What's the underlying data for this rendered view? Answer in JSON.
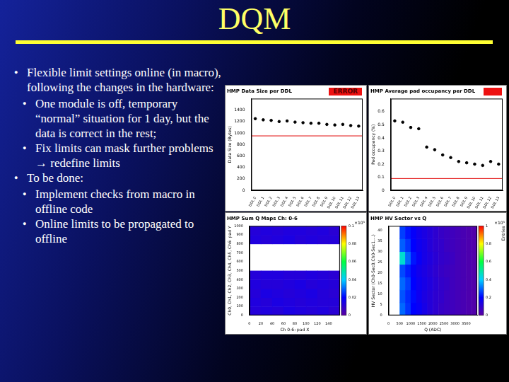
{
  "slide": {
    "title": "DQM",
    "bullets": [
      {
        "text": "Flexible limit settings online (in macro), following the changes in the hardware:",
        "sub": [
          "One module is off, temporary “normal” situation for 1 day, but the data is correct in the rest;",
          "Fix limits can mask further problems → redefine limits"
        ]
      },
      {
        "text": "To be done:",
        "sub": [
          "Implement checks from macro in offline code",
          "Online limits to be propagated to offline"
        ]
      }
    ]
  },
  "chart_data": [
    {
      "type": "line",
      "title": "HMP Data Size per DDL",
      "annotations": [
        "ERROR"
      ],
      "y_label": "Data Size (Bytes)",
      "categories": [
        "DDL 0",
        "DDL 1",
        "DDL 2",
        "DDL 3",
        "DDL 4",
        "DDL 5",
        "DDL 6",
        "DDL 7",
        "DDL 8",
        "DDL 9",
        "DDL 10",
        "DDL 11",
        "DDL 12",
        "DDL 13"
      ],
      "values": [
        1250,
        1230,
        1220,
        1200,
        1210,
        1190,
        1180,
        1170,
        1170,
        1150,
        1140,
        1150,
        1130,
        1120
      ],
      "threshold": 950,
      "ylim": [
        0,
        1600
      ],
      "yticks": [
        0,
        200,
        400,
        600,
        800,
        1000,
        1200,
        1400
      ],
      "color": "#000000",
      "marker": "circle",
      "line_style": "none"
    },
    {
      "type": "line",
      "title": "HMP Average pad occupancy per DDL",
      "y_label": "Pad occupancy (%)",
      "categories": [
        "DDL 0",
        "DDL 1",
        "DDL 2",
        "DDL 3",
        "DDL 4",
        "DDL 5",
        "DDL 6",
        "DDL 7",
        "DDL 8",
        "DDL 9",
        "DDL 10",
        "DDL 11",
        "DDL 12",
        "DDL 13"
      ],
      "values": [
        0.53,
        0.52,
        0.48,
        0.47,
        0.33,
        0.31,
        0.27,
        0.25,
        0.22,
        0.21,
        0.2,
        0.19,
        0.22,
        0.2
      ],
      "threshold": 0.09,
      "ylim": [
        0,
        0.7
      ],
      "yticks": [
        0,
        0.1,
        0.2,
        0.3,
        0.4,
        0.5,
        0.6
      ],
      "color": "#000000",
      "marker": "circle",
      "line_style": "none"
    },
    {
      "type": "heatmap",
      "title": "HMP Sum Q Maps Ch: 0-6",
      "x_label": "Ch 0-6: pad X",
      "y_label": "Ch0, Ch1, Ch2, Ch3, Ch4, Ch5, Ch6: pad Y",
      "xlim": [
        0,
        160
      ],
      "xticks": [
        0,
        20,
        40,
        60,
        80,
        100,
        120,
        140
      ],
      "ylim": [
        0,
        1000
      ],
      "yticks": [
        0,
        100,
        200,
        300,
        400,
        500,
        600,
        700,
        800,
        900,
        1000
      ],
      "x_bins": [
        0,
        20,
        40,
        60,
        80,
        100,
        120,
        140,
        160
      ],
      "y_bins": [
        0,
        100,
        200,
        300,
        400,
        500,
        600,
        700,
        800,
        900,
        1000
      ],
      "cells": [
        [
          0.012,
          0.013,
          0.012,
          0.014,
          0.013,
          0.012,
          0.013,
          0.011
        ],
        [
          0.013,
          0.012,
          0.014,
          0.013,
          0.012,
          0.013,
          0.012,
          0.012
        ],
        [
          0.012,
          0.014,
          0.013,
          0.012,
          0.013,
          0.014,
          0.012,
          0.011
        ],
        [
          0.013,
          0.012,
          0.012,
          0.013,
          0.014,
          0.012,
          0.013,
          0.012
        ],
        [
          0.012,
          0.013,
          0.013,
          0.012,
          0.012,
          0.013,
          0.012,
          0.011
        ],
        [
          0,
          0,
          0,
          0,
          0,
          0,
          0,
          0
        ],
        [
          0,
          0,
          0,
          0,
          0,
          0,
          0,
          0
        ],
        [
          0,
          0,
          0,
          0,
          0,
          0,
          0,
          0
        ],
        [
          0.013,
          0.012,
          0.013,
          0.014,
          0.012,
          0.013,
          0.012,
          0.012
        ],
        [
          0.012,
          0.013,
          0.012,
          0.013,
          0.013,
          0.012,
          0.013,
          0.011
        ]
      ],
      "colorbar_range": [
        0,
        0.1
      ],
      "colorbar_ticks": [
        0,
        0.02,
        0.04,
        0.06,
        0.08,
        0.1
      ],
      "colorbar_title": "×10³"
    },
    {
      "type": "heatmap",
      "title": "HMP HV Sector vs Q",
      "x_label": "Q (ADC)",
      "y_label": "HV Sector (Ch0-Sec0,Ch0-Sec1,...)",
      "xlim": [
        0,
        4000
      ],
      "xticks": [
        0,
        500,
        1000,
        1500,
        2000,
        2500,
        3000,
        3500
      ],
      "ylim": [
        0,
        42
      ],
      "yticks": [
        0,
        5,
        10,
        15,
        20,
        25,
        30,
        35,
        40
      ],
      "x_bins": [
        0,
        250,
        500,
        750,
        1000,
        1250,
        1500,
        1750,
        2000,
        2250,
        2500,
        2750,
        3000,
        3250,
        3500,
        3750,
        4000
      ],
      "y_bins": [
        0,
        6,
        12,
        18,
        24,
        30,
        36,
        42
      ],
      "cells": [
        [
          0,
          0,
          0.3,
          0.25,
          0.2,
          0.18,
          0.15,
          0.12,
          0.1,
          0.08,
          0.07,
          0.06,
          0.05,
          0.04,
          0.03,
          0.02
        ],
        [
          0,
          0,
          0.28,
          0.24,
          0.21,
          0.17,
          0.14,
          0.12,
          0.1,
          0.09,
          0.07,
          0.06,
          0.05,
          0.04,
          0.03,
          0.02
        ],
        [
          0,
          0,
          0.3,
          0.26,
          0.2,
          0.17,
          0.15,
          0.13,
          0.11,
          0.09,
          0.08,
          0.06,
          0.05,
          0.04,
          0.03,
          0.02
        ],
        [
          0,
          0,
          0.27,
          0.23,
          0.19,
          0.16,
          0.14,
          0.12,
          0.1,
          0.08,
          0.07,
          0.06,
          0.05,
          0.04,
          0.03,
          0.02
        ],
        [
          0,
          0,
          0.45,
          0.3,
          0.22,
          0.18,
          0.15,
          0.13,
          0.11,
          0.09,
          0.08,
          0.07,
          0.05,
          0.04,
          0.03,
          0.02
        ],
        [
          0,
          0,
          0.29,
          0.25,
          0.2,
          0.17,
          0.15,
          0.12,
          0.1,
          0.09,
          0.07,
          0.06,
          0.05,
          0.04,
          0.03,
          0.02
        ],
        [
          0,
          0,
          0.26,
          0.22,
          0.19,
          0.16,
          0.14,
          0.12,
          0.1,
          0.08,
          0.07,
          0.06,
          0.05,
          0.04,
          0.03,
          0.02
        ]
      ],
      "colorbar_range": [
        0,
        1
      ],
      "colorbar_ticks": [
        0,
        0.2,
        0.4,
        0.6,
        0.8,
        1
      ],
      "colorbar_title": "×10³",
      "colorbar_label": "Entries"
    }
  ]
}
